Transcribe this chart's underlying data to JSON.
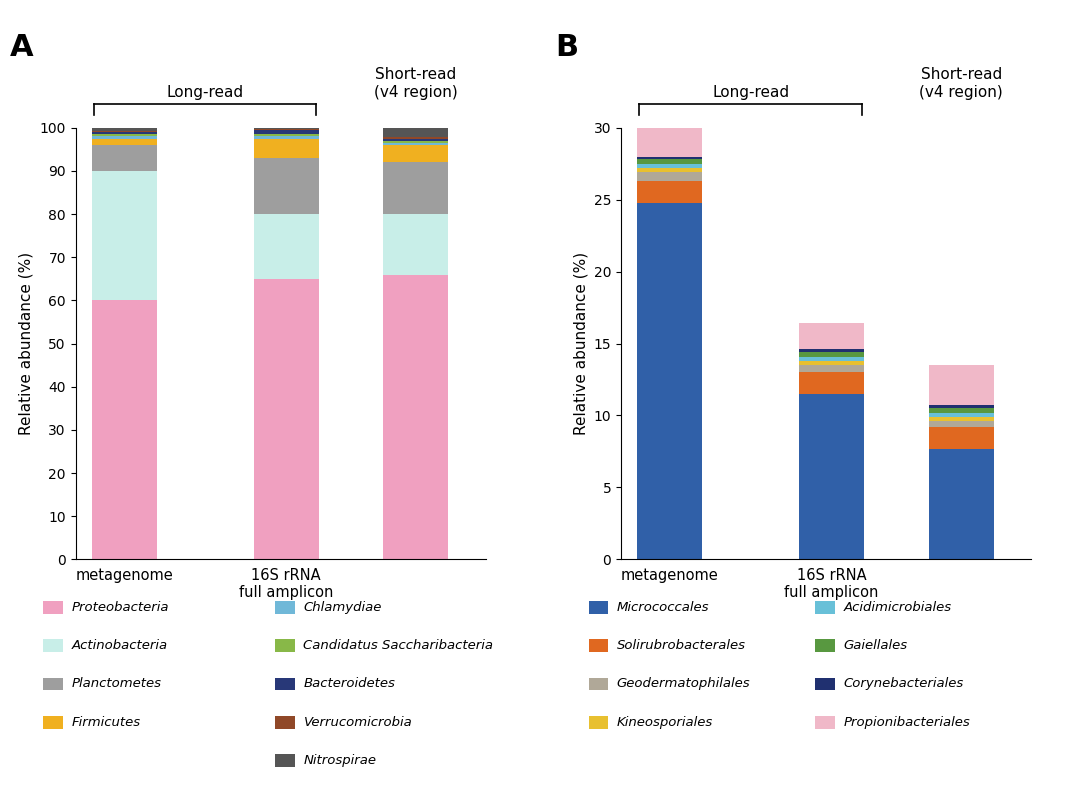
{
  "panel_A": {
    "layers": [
      {
        "name": "Proteobacteria",
        "color": "#F0A0C0",
        "values": [
          60.0,
          65.0,
          66.0
        ]
      },
      {
        "name": "Actinobacteria",
        "color": "#C8EEE8",
        "values": [
          30.0,
          15.0,
          14.0
        ]
      },
      {
        "name": "Planctometes",
        "color": "#9E9E9E",
        "values": [
          6.0,
          13.0,
          12.0
        ]
      },
      {
        "name": "Firmicutes",
        "color": "#F0B020",
        "values": [
          1.5,
          4.5,
          4.0
        ]
      },
      {
        "name": "Chlamydiae",
        "color": "#70B8D8",
        "values": [
          0.5,
          0.5,
          0.5
        ]
      },
      {
        "name": "Candidatus Saccharibacteria",
        "color": "#88B848",
        "values": [
          0.5,
          0.5,
          0.5
        ]
      },
      {
        "name": "Bacteroidetes",
        "color": "#283878",
        "values": [
          0.5,
          1.0,
          0.5
        ]
      },
      {
        "name": "Verrucomicrobia",
        "color": "#904828",
        "values": [
          0.3,
          0.3,
          0.3
        ]
      },
      {
        "name": "Nitrospirae",
        "color": "#555555",
        "values": [
          0.7,
          0.2,
          2.2
        ]
      }
    ],
    "ylabel": "Relative abundance (%)",
    "ylim": [
      0,
      100
    ],
    "yticks": [
      0,
      10,
      20,
      30,
      40,
      50,
      60,
      70,
      80,
      90,
      100
    ],
    "bar_width": 0.6,
    "bar_positions": [
      0.0,
      1.5,
      2.7
    ],
    "xtick_labels": [
      "metagenome",
      "16S rRNA\nfull amplicon",
      ""
    ]
  },
  "panel_B": {
    "layers": [
      {
        "name": "Micrococcales",
        "color": "#3060A8",
        "values": [
          24.8,
          11.5,
          7.7
        ]
      },
      {
        "name": "Solirubrobacterales",
        "color": "#E06820",
        "values": [
          1.5,
          1.5,
          1.5
        ]
      },
      {
        "name": "Geodermatophilales",
        "color": "#B0A898",
        "values": [
          0.6,
          0.5,
          0.4
        ]
      },
      {
        "name": "Kineosporiales",
        "color": "#E8C030",
        "values": [
          0.3,
          0.3,
          0.3
        ]
      },
      {
        "name": "Acidimicrobiales",
        "color": "#68C0D8",
        "values": [
          0.3,
          0.3,
          0.3
        ]
      },
      {
        "name": "Gaiellales",
        "color": "#589840",
        "values": [
          0.3,
          0.3,
          0.3
        ]
      },
      {
        "name": "Corynebacteriales",
        "color": "#203070",
        "values": [
          0.2,
          0.2,
          0.2
        ]
      },
      {
        "name": "Propionibacteriales",
        "color": "#F0B8C8",
        "values": [
          2.0,
          1.8,
          2.8
        ]
      }
    ],
    "ylabel": "Relative abundance (%)",
    "ylim": [
      0,
      30
    ],
    "yticks": [
      0,
      5,
      10,
      15,
      20,
      25,
      30
    ],
    "bar_width": 0.6,
    "bar_positions": [
      0.0,
      1.5,
      2.7
    ],
    "xtick_labels": [
      "metagenome",
      "16S rRNA\nfull amplicon",
      ""
    ]
  },
  "legend_A": {
    "col1": [
      {
        "name": "Proteobacteria",
        "color": "#F0A0C0"
      },
      {
        "name": "Actinobacteria",
        "color": "#C8EEE8"
      },
      {
        "name": "Planctometes",
        "color": "#9E9E9E"
      },
      {
        "name": "Firmicutes",
        "color": "#F0B020"
      }
    ],
    "col2": [
      {
        "name": "Chlamydiae",
        "color": "#70B8D8"
      },
      {
        "name": "Candidatus Saccharibacteria",
        "color": "#88B848"
      },
      {
        "name": "Bacteroidetes",
        "color": "#283878"
      },
      {
        "name": "Verrucomicrobia",
        "color": "#904828"
      },
      {
        "name": "Nitrospirae",
        "color": "#555555"
      }
    ]
  },
  "legend_B": {
    "col1": [
      {
        "name": "Micrococcales",
        "color": "#3060A8"
      },
      {
        "name": "Solirubrobacterales",
        "color": "#E06820"
      },
      {
        "name": "Geodermatophilales",
        "color": "#B0A898"
      },
      {
        "name": "Kineosporiales",
        "color": "#E8C030"
      }
    ],
    "col2": [
      {
        "name": "Acidimicrobiales",
        "color": "#68C0D8"
      },
      {
        "name": "Gaiellales",
        "color": "#589840"
      },
      {
        "name": "Corynebacteriales",
        "color": "#203070"
      },
      {
        "name": "Propionibacteriales",
        "color": "#F0B8C8"
      }
    ]
  },
  "longread_label": "Long-read",
  "shortread_label": "Short-read\n(v4 region)",
  "panel_label_A": "A",
  "panel_label_B": "B"
}
